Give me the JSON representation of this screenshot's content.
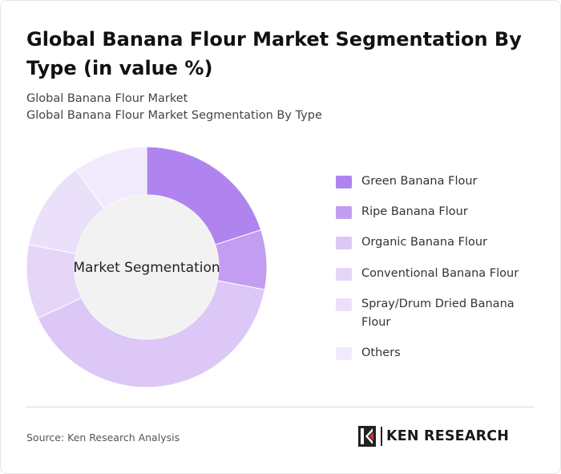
{
  "header": {
    "title": "Global Banana Flour Market Segmentation By Type (in value %)",
    "subtitle_lines": [
      "Global Banana Flour Market",
      "Global Banana Flour Market Segmentation By Type"
    ]
  },
  "chart_data": {
    "type": "pie",
    "center_label": "Market Segmentation",
    "categories": [
      "Green Banana Flour",
      "Ripe Banana Flour",
      "Organic Banana Flour",
      "Conventional Banana Flour",
      "Spray/Drum Dried Banana Flour",
      "Others"
    ],
    "values": [
      20,
      8,
      40,
      10,
      12,
      10
    ],
    "colors": [
      "#b084ee",
      "#c39df2",
      "#dcc7f7",
      "#e5d6f8",
      "#ebe0fa",
      "#f1eafc"
    ],
    "legend_position": "right"
  },
  "footer": {
    "source": "Source: Ken Research Analysis",
    "logo_text": "KEN RESEARCH"
  }
}
